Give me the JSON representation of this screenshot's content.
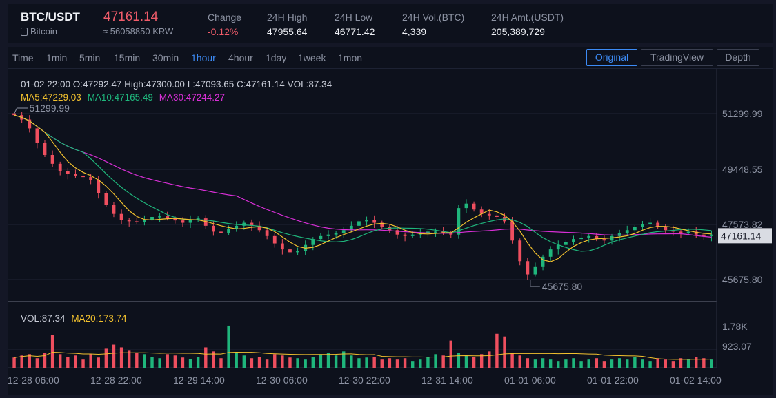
{
  "ticker": {
    "symbol": "BTC/USDT",
    "subtitle": "Bitcoin",
    "price": "47161.14",
    "krw": "≈ 56058850 KRW",
    "stats": [
      {
        "label": "Change",
        "value": "-0.12%",
        "negative": true
      },
      {
        "label": "24H High",
        "value": "47955.64"
      },
      {
        "label": "24H Low",
        "value": "46771.42"
      },
      {
        "label": "24H Vol.(BTC)",
        "value": "4,339"
      },
      {
        "label": "24H Amt.(USDT)",
        "value": "205,389,729"
      }
    ]
  },
  "toolbar": {
    "timeframes": [
      "Time",
      "1min",
      "5min",
      "15min",
      "30min",
      "1hour",
      "4hour",
      "1day",
      "1week",
      "1mon"
    ],
    "active_timeframe": "1hour",
    "views": [
      "Original",
      "TradingView",
      "Depth"
    ],
    "active_view": "Original"
  },
  "legend": {
    "ohlc": "01-02 22:00   O:47292.47  High:47300.00  L:47093.65  C:47161.14  VOL:87.34",
    "ma5": "MA5:47229.03",
    "ma10": "MA10:47165.49",
    "ma30": "MA30:47244.27",
    "vol": "VOL:87.34",
    "ma20": "MA20:173.74"
  },
  "colors": {
    "up": "#1fb67c",
    "down": "#ef4f5f",
    "ma5": "#f2c12e",
    "ma10": "#1fb67c",
    "ma30": "#d82fd6",
    "grid": "#1e2333",
    "axis_text": "#8d93a3",
    "accent": "#3d8bf5"
  },
  "chart_data": {
    "type": "candlestick",
    "price_axis": {
      "ticks": [
        "51299.99",
        "49448.55",
        "47573.82",
        "45675.80"
      ],
      "range": [
        45200,
        52300
      ],
      "last_price": "47161.14"
    },
    "volume_axis": {
      "ticks": [
        "1.78K",
        "923.07"
      ]
    },
    "x_ticks": [
      "12-28 06:00",
      "12-28 22:00",
      "12-29 14:00",
      "12-30 06:00",
      "12-30 22:00",
      "12-31 14:00",
      "01-01 06:00",
      "01-01 22:00",
      "01-02 14:00"
    ],
    "annotations": {
      "max": "51299.99",
      "min": "45675.80"
    },
    "close_path": [
      51250,
      51100,
      50800,
      50300,
      49900,
      49600,
      49350,
      49250,
      49200,
      49150,
      49050,
      48600,
      48200,
      47900,
      47700,
      47650,
      47620,
      47700,
      47800,
      47820,
      47750,
      47680,
      47600,
      47700,
      47750,
      47500,
      47300,
      47250,
      47400,
      47500,
      47600,
      47500,
      47350,
      47150,
      46900,
      46700,
      46600,
      46650,
      46850,
      47050,
      47150,
      47200,
      47250,
      47350,
      47500,
      47650,
      47700,
      47600,
      47450,
      47350,
      47200,
      47150,
      47200,
      47250,
      47300,
      47300,
      47250,
      47200,
      48100,
      48250,
      48050,
      47900,
      47850,
      47800,
      47650,
      47000,
      46300,
      45850,
      46100,
      46450,
      46700,
      46850,
      46950,
      47050,
      47100,
      47150,
      47050,
      47000,
      47150,
      47250,
      47350,
      47450,
      47550,
      47600,
      47450,
      47350,
      47300,
      47250,
      47300,
      47200,
      47150,
      47200
    ],
    "volumes": [
      0.15,
      0.18,
      0.2,
      0.14,
      0.22,
      0.48,
      0.2,
      0.16,
      0.18,
      0.12,
      0.2,
      0.15,
      0.28,
      0.34,
      0.3,
      0.25,
      0.22,
      0.2,
      0.16,
      0.14,
      0.2,
      0.18,
      0.15,
      0.13,
      0.16,
      0.3,
      0.24,
      0.14,
      0.62,
      0.22,
      0.18,
      0.14,
      0.16,
      0.12,
      0.2,
      0.18,
      0.15,
      0.14,
      0.12,
      0.16,
      0.2,
      0.22,
      0.18,
      0.24,
      0.18,
      0.14,
      0.15,
      0.16,
      0.12,
      0.14,
      0.12,
      0.14,
      0.1,
      0.12,
      0.16,
      0.2,
      0.18,
      0.4,
      0.22,
      0.18,
      0.16,
      0.2,
      0.24,
      0.5,
      0.46,
      0.22,
      0.18,
      0.14,
      0.12,
      0.14,
      0.12,
      0.1,
      0.12,
      0.14,
      0.1,
      0.12,
      0.14,
      0.1,
      0.12,
      0.14,
      0.12,
      0.16,
      0.12,
      0.1,
      0.14,
      0.12,
      0.1,
      0.14,
      0.12,
      0.16,
      0.14,
      0.12
    ]
  }
}
